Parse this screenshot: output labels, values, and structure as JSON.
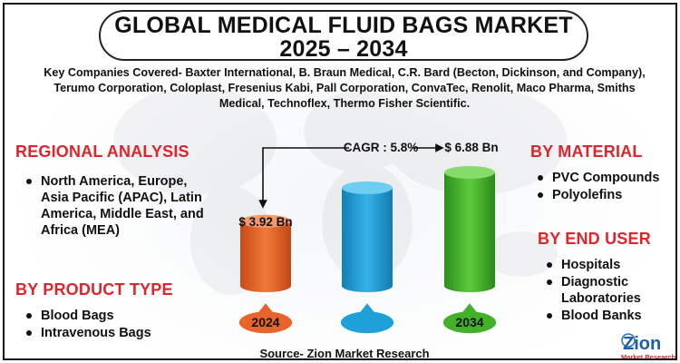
{
  "title_line1": "GLOBAL MEDICAL FLUID BAGS MARKET",
  "title_line2": "2025 – 2034",
  "companies_text": "Key Companies Covered- Baxter International, B. Braun Medical, C.R. Bard (Becton, Dickinson, and Company), Terumo Corporation, Coloplast, Fresenius Kabi, Pall Corporation, ConvaTec, Renolit, Maco Pharma, Smiths Medical, Technoflex, Thermo Fisher Scientific.",
  "regional": {
    "heading": "REGIONAL ANALYSIS",
    "items": [
      "North America, Europe, Asia Pacific (APAC), Latin America, Middle East, and Africa (MEA)"
    ]
  },
  "product_type": {
    "heading": "BY  PRODUCT TYPE",
    "items": [
      "Blood Bags",
      "Intravenous Bags"
    ]
  },
  "material": {
    "heading": "BY MATERIAL",
    "items": [
      "PVC Compounds",
      "Polyolefins"
    ]
  },
  "end_user": {
    "heading": "BY END USER",
    "items": [
      "Hospitals",
      "Diagnostic Laboratories",
      "Blood Banks"
    ]
  },
  "source": "Source- Zion Market Research",
  "logo_text": "Zion",
  "logo_subtext": "Market Research",
  "colors": {
    "heading_red": "#e0242b",
    "bar_2024": "#e8642a",
    "bar_mid": "#1fa0d8",
    "bar_2034": "#43b02a"
  },
  "chart_data": {
    "type": "bar",
    "categories": [
      "2024",
      "",
      "2034"
    ],
    "values": [
      3.92,
      null,
      6.88
    ],
    "value_labels": [
      "$ 3.92  Bn",
      "",
      "$ 6.88 Bn"
    ],
    "cagr_label": "CAGR : 5.8%",
    "title": "",
    "xlabel": "",
    "ylabel": ""
  }
}
